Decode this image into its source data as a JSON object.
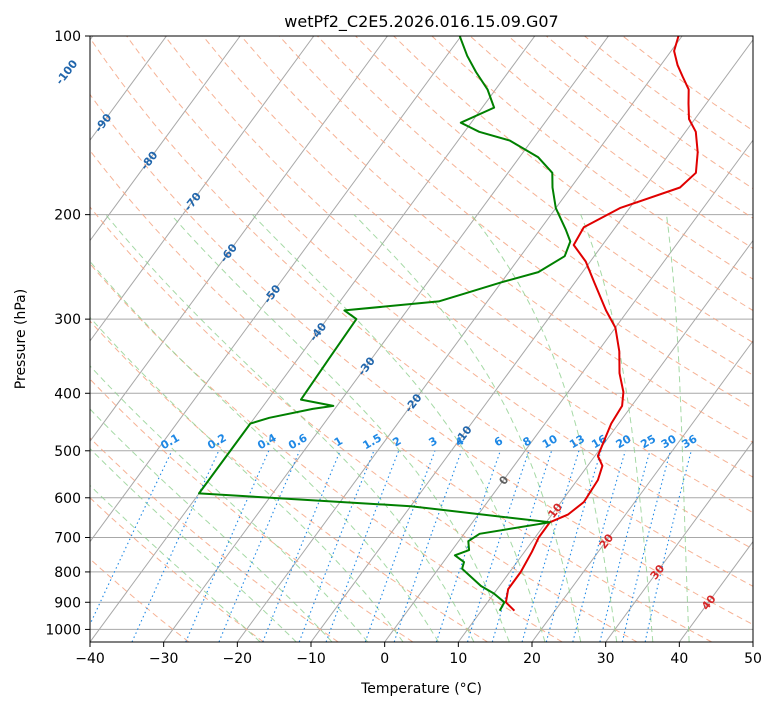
{
  "chart_data": {
    "type": "line",
    "title": "wetPf2_C2E5.2026.016.15.09.G07",
    "xlabel": "Temperature (°C)",
    "ylabel": "Pressure (hPa)",
    "xlim": [
      -40,
      50
    ],
    "ylim": [
      1050,
      100
    ],
    "y_scale": "log",
    "skew": "skew-T log-p",
    "x_ticks": [
      "−40",
      "−30",
      "−20",
      "−10",
      "0",
      "10",
      "20",
      "30",
      "40",
      "50"
    ],
    "y_ticks": [
      "100",
      "200",
      "300",
      "400",
      "500",
      "600",
      "700",
      "800",
      "900",
      "1000"
    ],
    "grid": true,
    "colors": {
      "temperature": "#e00000",
      "dewpoint": "#008000",
      "isotherm": "#a8a8a8",
      "dry_adiabat": "#f4a582",
      "moist_adiabat": "#8fcf8f",
      "mixing_ratio": "#1e88e5",
      "isotherm_label": "#2166ac",
      "adiabat_label": "#d62728",
      "zero_label": "#606060"
    },
    "isotherm_labels": [
      "-100",
      "-90",
      "-80",
      "-70",
      "-60",
      "-50",
      "-40",
      "-30",
      "-20",
      "-10",
      "0",
      "10",
      "20",
      "30",
      "40"
    ],
    "mixing_ratio_labels": [
      "0.1",
      "0.2",
      "0.4",
      "0.6",
      "1",
      "1.5",
      "2",
      "3",
      "4",
      "6",
      "8",
      "10",
      "13",
      "16",
      "20",
      "25",
      "30",
      "36"
    ],
    "series": [
      {
        "key": "temperature",
        "points": [
          [
            14.5,
            930
          ],
          [
            12.5,
            900
          ],
          [
            11.5,
            855
          ],
          [
            11.5,
            800
          ],
          [
            11.0,
            740
          ],
          [
            10.5,
            700
          ],
          [
            10.5,
            680
          ],
          [
            10.5,
            660
          ],
          [
            12.2,
            640
          ],
          [
            13.1,
            610
          ],
          [
            12.8,
            560
          ],
          [
            12.0,
            530
          ],
          [
            10.4,
            510
          ],
          [
            9.6,
            475
          ],
          [
            9.0,
            450
          ],
          [
            8.7,
            420
          ],
          [
            7.5,
            398
          ],
          [
            5.1,
            370
          ],
          [
            2.9,
            340
          ],
          [
            0.0,
            310
          ],
          [
            -3.0,
            290
          ],
          [
            -7.4,
            260
          ],
          [
            -10.6,
            240
          ],
          [
            -13.9,
            225
          ],
          [
            -14.3,
            210
          ],
          [
            -11.3,
            195
          ],
          [
            -5.2,
            180
          ],
          [
            -4.5,
            170
          ],
          [
            -6.3,
            157
          ],
          [
            -8.6,
            145
          ],
          [
            -10.8,
            138
          ],
          [
            -12.4,
            130
          ],
          [
            -13.8,
            123
          ],
          [
            -15.9,
            117
          ],
          [
            -17.7,
            112
          ],
          [
            -19.6,
            106
          ],
          [
            -20.5,
            100
          ]
        ]
      },
      {
        "key": "dewpoint",
        "points": [
          [
            12.5,
            930
          ],
          [
            12.3,
            900
          ],
          [
            10.0,
            870
          ],
          [
            7.5,
            845
          ],
          [
            3.2,
            790
          ],
          [
            2.8,
            770
          ],
          [
            0.9,
            750
          ],
          [
            2.3,
            735
          ],
          [
            1.3,
            710
          ],
          [
            2.1,
            690
          ],
          [
            10.5,
            660
          ],
          [
            -10.0,
            620
          ],
          [
            -40.0,
            590
          ],
          [
            -40.0,
            450
          ],
          [
            -38.0,
            440
          ],
          [
            -33.0,
            425
          ],
          [
            -30.5,
            420
          ],
          [
            -35.5,
            410
          ],
          [
            -35.8,
            350
          ],
          [
            -36.0,
            300
          ],
          [
            -38.5,
            290
          ],
          [
            -26.6,
            280
          ],
          [
            -24.0,
            272
          ],
          [
            -20.0,
            260
          ],
          [
            -16.0,
            250
          ],
          [
            -14.0,
            235
          ],
          [
            -14.7,
            222
          ],
          [
            -16.5,
            212
          ],
          [
            -20.0,
            195
          ],
          [
            -22.5,
            180
          ],
          [
            -24.0,
            170
          ],
          [
            -27.5,
            160
          ],
          [
            -33.0,
            150
          ],
          [
            -38.0,
            145
          ],
          [
            -41.4,
            140
          ],
          [
            -38.4,
            132
          ],
          [
            -41.1,
            123
          ],
          [
            -44.4,
            115
          ],
          [
            -47.2,
            108
          ],
          [
            -50.2,
            100
          ]
        ]
      }
    ]
  }
}
